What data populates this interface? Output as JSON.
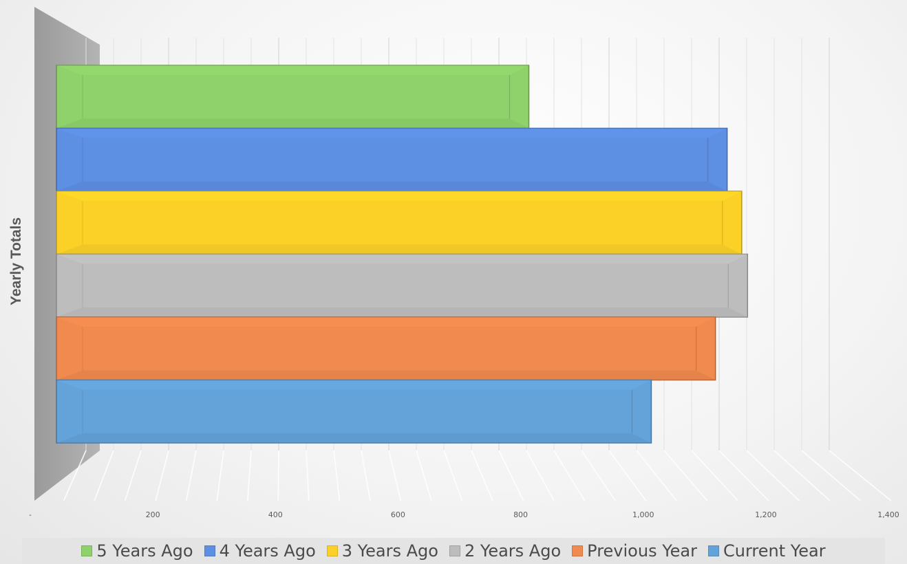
{
  "chart_data": {
    "type": "bar",
    "orientation": "horizontal",
    "style": "3d-clustered",
    "ylabel": "Yearly Totals",
    "xlim": [
      0,
      1400
    ],
    "x_ticks": [
      "-",
      "200",
      "400",
      "600",
      "800",
      "1,000",
      "1,200",
      "1,400"
    ],
    "x_tick_values": [
      0,
      200,
      400,
      600,
      800,
      1000,
      1200,
      1400
    ],
    "grid": true,
    "legend_position": "bottom",
    "series": [
      {
        "name": "5 Years Ago",
        "value": 810,
        "color": "#8fd16a"
      },
      {
        "name": "4 Years Ago",
        "value": 1150,
        "color": "#5d8fe3"
      },
      {
        "name": "3 Years Ago",
        "value": 1175,
        "color": "#fcd127"
      },
      {
        "name": "2 Years Ago",
        "value": 1185,
        "color": "#bdbdbd"
      },
      {
        "name": "Previous Year",
        "value": 1130,
        "color": "#f08a4e"
      },
      {
        "name": "Current Year",
        "value": 1020,
        "color": "#64a3da"
      }
    ]
  }
}
